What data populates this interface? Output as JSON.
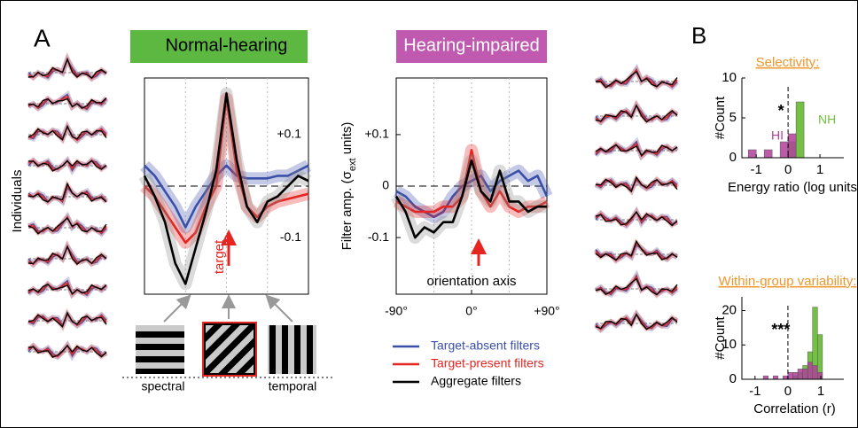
{
  "labels": {
    "panel_a": "A",
    "panel_b": "B",
    "individuals": "Individuals",
    "target": "target",
    "spectral": "spectral",
    "temporal": "temporal"
  },
  "chart_data": [
    {
      "type": "line",
      "title": "Normal-hearing",
      "x": [
        -90,
        -78.75,
        -67.5,
        -56.25,
        -45,
        -33.75,
        -22.5,
        -11.25,
        0,
        11.25,
        22.5,
        33.75,
        45,
        56.25,
        67.5,
        78.75,
        90
      ],
      "xlim": [
        -90,
        90
      ],
      "ylim": [
        -0.21,
        0.21
      ],
      "yticks": [
        {
          "value": 0.1,
          "label": "+0.1"
        },
        {
          "value": -0.1,
          "label": "-0.1"
        }
      ],
      "zero_line": true,
      "series": [
        {
          "name": "Target-absent filters",
          "color": "#3a4fa8",
          "values": [
            0.04,
            0.02,
            -0.01,
            -0.04,
            -0.08,
            -0.04,
            -0.01,
            0.02,
            0.04,
            0.02,
            0.015,
            0.015,
            0.015,
            0.02,
            0.02,
            0.03,
            0.04
          ]
        },
        {
          "name": "Target-present filters",
          "color": "#e52521",
          "values": [
            0.0,
            -0.02,
            -0.05,
            -0.08,
            -0.11,
            -0.09,
            -0.04,
            0.0,
            0.17,
            0.03,
            -0.04,
            -0.06,
            -0.04,
            -0.03,
            -0.025,
            -0.02,
            -0.015
          ]
        },
        {
          "name": "Aggregate filters",
          "color": "#000000",
          "values": [
            0.02,
            -0.02,
            -0.07,
            -0.15,
            -0.19,
            -0.12,
            -0.05,
            0.03,
            0.18,
            0.05,
            -0.04,
            -0.07,
            -0.03,
            -0.02,
            0.0,
            0.02,
            0.01
          ]
        }
      ]
    },
    {
      "type": "line",
      "title": "Hearing-impaired",
      "ylabel": [
        "Filter amp. (σ",
        "ext",
        " units)"
      ],
      "xlabel": "orientation axis",
      "x": [
        -90,
        -78.75,
        -67.5,
        -56.25,
        -45,
        -33.75,
        -22.5,
        -11.25,
        0,
        11.25,
        22.5,
        33.75,
        45,
        56.25,
        67.5,
        78.75,
        90
      ],
      "xlim": [
        -90,
        90
      ],
      "ylim": [
        -0.21,
        0.21
      ],
      "xticks": [
        {
          "value": -90,
          "label": "-90°"
        },
        {
          "value": 0,
          "label": "0°"
        },
        {
          "value": 90,
          "label": "+90°"
        }
      ],
      "yticks": [
        {
          "value": 0.1,
          "label": "+0.1"
        },
        0,
        {
          "value": -0.1,
          "label": "-0.1"
        }
      ],
      "zero_line": true,
      "series": [
        {
          "name": "Target-absent filters",
          "color": "#3a4fa8",
          "values": [
            -0.01,
            -0.02,
            -0.04,
            -0.05,
            -0.06,
            -0.05,
            -0.02,
            0.0,
            0.01,
            0.02,
            -0.01,
            0.01,
            0.02,
            0.03,
            0.01,
            0.02,
            -0.02
          ]
        },
        {
          "name": "Target-present filters",
          "color": "#e52521",
          "values": [
            -0.03,
            -0.04,
            -0.05,
            -0.05,
            -0.05,
            -0.04,
            -0.04,
            -0.02,
            0.07,
            -0.01,
            -0.04,
            -0.01,
            -0.04,
            -0.05,
            -0.04,
            -0.04,
            -0.03
          ]
        },
        {
          "name": "Aggregate filters",
          "color": "#000000",
          "values": [
            -0.02,
            -0.05,
            -0.1,
            -0.08,
            -0.09,
            -0.07,
            -0.07,
            -0.02,
            0.05,
            -0.01,
            -0.03,
            0.03,
            -0.03,
            -0.03,
            -0.05,
            -0.04,
            -0.04
          ]
        }
      ]
    },
    {
      "type": "histogram",
      "title": "Selectivity:",
      "xlabel": "Energy ratio (log units)",
      "ylabel": "#Count",
      "annotation": "*",
      "bins": [
        -1.25,
        -1,
        -0.75,
        -0.5,
        -0.25,
        0,
        0.25,
        0.5
      ],
      "xlim": [
        -1.45,
        1.75
      ],
      "ylim": [
        0,
        10
      ],
      "xticks": [
        -1,
        0,
        1
      ],
      "yticks": [
        0,
        5,
        10
      ],
      "series": [
        {
          "name": "NH",
          "color": "#74c044",
          "values": [
            0,
            0,
            0,
            0,
            0,
            2,
            7
          ]
        },
        {
          "name": "HI",
          "color": "#b0409a",
          "values": [
            1,
            0,
            1,
            0,
            2,
            3,
            0
          ]
        }
      ]
    },
    {
      "type": "histogram",
      "title": "Within-group variability:",
      "xlabel": "Correlation (r)",
      "ylabel": "#Count",
      "annotation": "***",
      "bins": [
        -0.9,
        -0.75,
        -0.6,
        -0.45,
        -0.3,
        -0.15,
        0,
        0.15,
        0.3,
        0.45,
        0.6,
        0.75,
        0.9,
        1.05
      ],
      "xlim": [
        -1.4,
        1.7
      ],
      "ylim": [
        0,
        24
      ],
      "xticks": [
        -1,
        0,
        1
      ],
      "yticks": [
        0,
        10,
        20
      ],
      "series": [
        {
          "name": "NH",
          "color": "#74c044",
          "values": [
            0,
            0,
            0,
            0,
            0,
            0,
            0,
            1,
            2,
            4,
            8,
            21,
            13
          ]
        },
        {
          "name": "HI",
          "color": "#b0409a",
          "values": [
            0,
            1,
            0,
            1,
            0,
            1,
            2,
            2,
            3,
            3,
            5,
            4,
            2
          ]
        }
      ]
    }
  ]
}
